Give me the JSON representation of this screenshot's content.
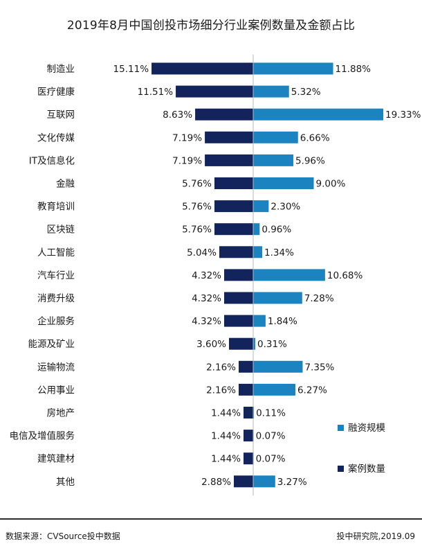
{
  "chart_data": {
    "type": "bar",
    "title": "2019年8月中国创投市场细分行业案例数量及金额占比",
    "categories": [
      "制造业",
      "医疗健康",
      "互联网",
      "文化传媒",
      "IT及信息化",
      "金融",
      "教育培训",
      "区块链",
      "人工智能",
      "汽车行业",
      "消费升级",
      "企业服务",
      "能源及矿业",
      "运输物流",
      "公用事业",
      "房地产",
      "电信及增值服务",
      "建筑建材",
      "其他"
    ],
    "series": [
      {
        "name": "案例数量",
        "color": "#13245c",
        "side": "left",
        "values": [
          15.11,
          11.51,
          8.63,
          7.19,
          7.19,
          5.76,
          5.76,
          5.76,
          5.04,
          4.32,
          4.32,
          4.32,
          3.6,
          2.16,
          2.16,
          1.44,
          1.44,
          1.44,
          2.88
        ],
        "labels": [
          "15.11%",
          "11.51%",
          "8.63%",
          "7.19%",
          "7.19%",
          "5.76%",
          "5.76%",
          "5.76%",
          "5.04%",
          "4.32%",
          "4.32%",
          "4.32%",
          "3.60%",
          "2.16%",
          "2.16%",
          "1.44%",
          "1.44%",
          "1.44%",
          "2.88%"
        ]
      },
      {
        "name": "融资规模",
        "color": "#1a83c0",
        "side": "right",
        "values": [
          11.88,
          5.32,
          19.33,
          6.66,
          5.96,
          9.0,
          2.3,
          0.96,
          1.34,
          10.68,
          7.28,
          1.84,
          0.31,
          7.35,
          6.27,
          0.11,
          0.07,
          0.07,
          3.27
        ],
        "labels": [
          "11.88%",
          "5.32%",
          "19.33%",
          "6.66%",
          "5.96%",
          "9.00%",
          "2.30%",
          "0.96%",
          "1.34%",
          "10.68%",
          "7.28%",
          "1.84%",
          "0.31%",
          "7.35%",
          "6.27%",
          "0.11%",
          "0.07%",
          "0.07%",
          "3.27%"
        ]
      }
    ],
    "unit": "%",
    "legend": {
      "position": "bottom-right",
      "items": [
        "融资规模",
        "案例数量"
      ]
    }
  },
  "footer": {
    "source": "数据来源：CVSource投中数据",
    "credit": "投中研究院,2019.09"
  }
}
